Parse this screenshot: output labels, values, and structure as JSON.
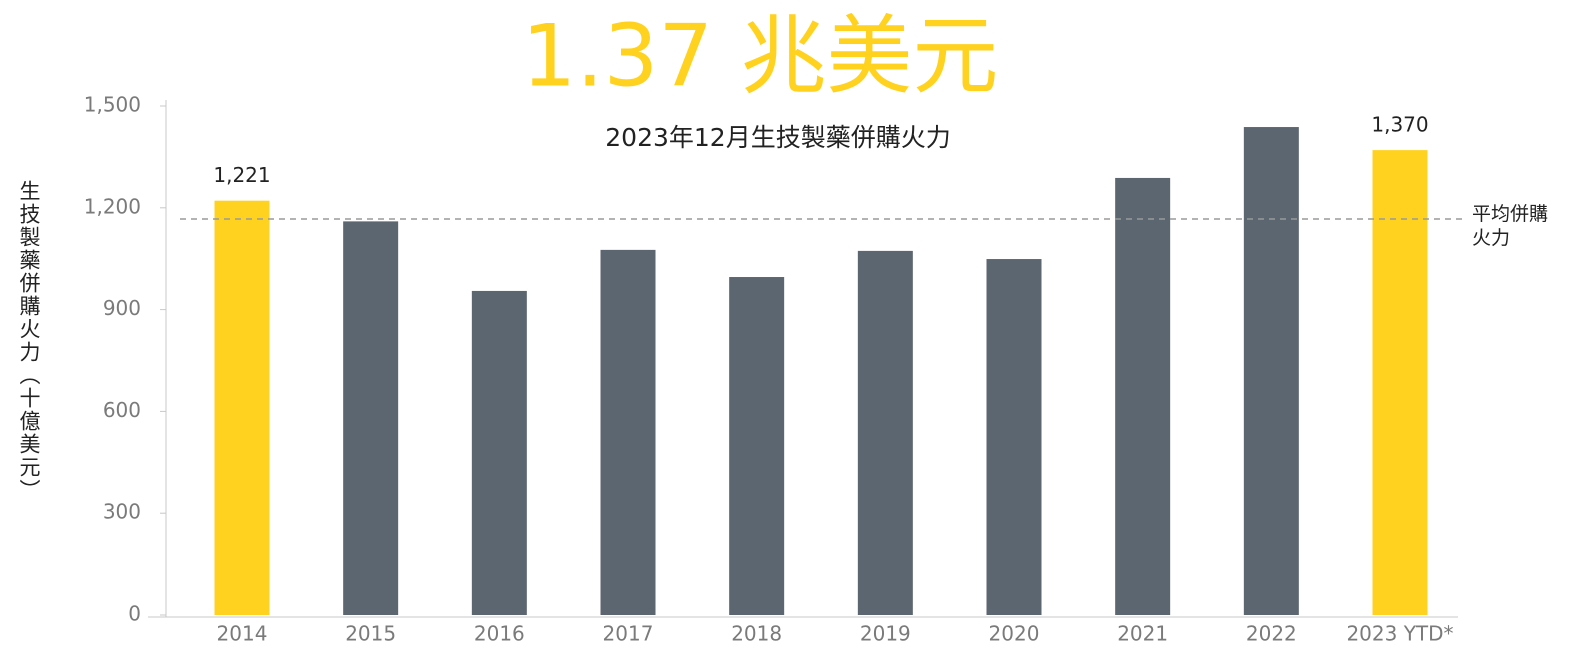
{
  "chart_data": {
    "type": "bar",
    "headline": "1.37 兆美元",
    "title": "2023年12月生技製藥併購火力",
    "y_label": "生技製藥併購火力（十億美元）",
    "categories": [
      "2014",
      "2015",
      "2016",
      "2017",
      "2018",
      "2019",
      "2020",
      "2021",
      "2022",
      "2023 YTD*"
    ],
    "values": [
      1221,
      1160,
      955,
      1076,
      996,
      1073,
      1049,
      1288,
      1438,
      1370
    ],
    "value_labels": [
      "1,221",
      null,
      null,
      null,
      null,
      null,
      null,
      null,
      null,
      "1,370"
    ],
    "colors": [
      "#ffd220",
      "#5c6670",
      "#5c6670",
      "#5c6670",
      "#5c6670",
      "#5c6670",
      "#5c6670",
      "#5c6670",
      "#5c6670",
      "#ffd220"
    ],
    "average": 1167,
    "average_label": "平均併購火力",
    "ylim": [
      0,
      1500
    ],
    "yticks": [
      0,
      300,
      600,
      900,
      {
        "value": 1200,
        "label": "1,200"
      },
      {
        "value": 1500,
        "label": "1,500"
      }
    ]
  }
}
